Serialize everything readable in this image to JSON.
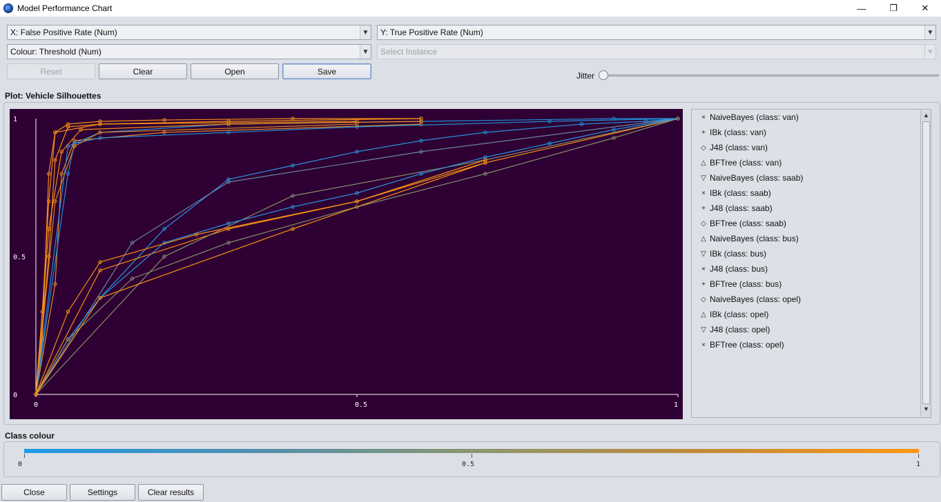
{
  "window": {
    "title": "Model Performance Chart",
    "minimize": "—",
    "maximize": "❐",
    "close": "✕"
  },
  "controls": {
    "x_axis": "X: False Positive Rate (Num)",
    "y_axis": "Y: True Positive Rate (Num)",
    "colour": "Colour: Threshold (Num)",
    "instance": "Select Instance",
    "reset": "Reset",
    "clear": "Clear",
    "open": "Open",
    "save": "Save",
    "jitter": "Jitter",
    "jitter_value": 0
  },
  "plot": {
    "label": "Plot: Vehicle Silhouettes",
    "background": "#2e0033",
    "x_ticks": [
      "0",
      "0.5",
      "1"
    ],
    "y_ticks": [
      "1",
      "0.5",
      "0"
    ]
  },
  "legend": {
    "items": [
      {
        "symbol": "×",
        "label": "NaiveBayes (class: van)"
      },
      {
        "symbol": "+",
        "label": "IBk (class: van)"
      },
      {
        "symbol": "◇",
        "label": "J48 (class: van)"
      },
      {
        "symbol": "△",
        "label": "BFTree (class: van)"
      },
      {
        "symbol": "▽",
        "label": "NaiveBayes (class: saab)"
      },
      {
        "symbol": "×",
        "label": "IBk (class: saab)"
      },
      {
        "symbol": "+",
        "label": "J48 (class: saab)"
      },
      {
        "symbol": "◇",
        "label": "BFTree (class: saab)"
      },
      {
        "symbol": "△",
        "label": "NaiveBayes (class: bus)"
      },
      {
        "symbol": "▽",
        "label": "IBk (class: bus)"
      },
      {
        "symbol": "×",
        "label": "J48 (class: bus)"
      },
      {
        "symbol": "+",
        "label": "BFTree (class: bus)"
      },
      {
        "symbol": "◇",
        "label": "NaiveBayes (class: opel)"
      },
      {
        "symbol": "△",
        "label": "IBk (class: opel)"
      },
      {
        "symbol": "▽",
        "label": "J48 (class: opel)"
      },
      {
        "symbol": "×",
        "label": "BFTree (class: opel)"
      }
    ]
  },
  "class_colour": {
    "label": "Class colour",
    "ticks": [
      "0",
      "0.5",
      "1"
    ],
    "low_color": "#1e9ae6",
    "high_color": "#ff9614"
  },
  "bottom": {
    "close": "Close",
    "settings": "Settings",
    "clear_results": "Clear results"
  },
  "chart_data": {
    "type": "line",
    "xlim": [
      0,
      1
    ],
    "ylim": [
      0,
      1
    ],
    "x_ticks": [
      "0",
      "0.5",
      "1"
    ],
    "y_ticks": [
      "0",
      "0.5",
      "1"
    ],
    "series": [
      {
        "name": "NaiveBayes (class: van)",
        "color": "#ff9614",
        "x": [
          0,
          0.01,
          0.02,
          0.03,
          0.05,
          0.1,
          0.2,
          0.4,
          0.6
        ],
        "y": [
          0,
          0.3,
          0.7,
          0.95,
          0.98,
          0.99,
          0.995,
          1.0,
          1.0
        ]
      },
      {
        "name": "IBk (class: van)",
        "color": "#ff9614",
        "x": [
          0,
          0.02,
          0.03,
          0.05,
          0.1,
          0.3,
          0.6
        ],
        "y": [
          0,
          0.5,
          0.85,
          0.97,
          0.98,
          0.99,
          1.0
        ]
      },
      {
        "name": "J48 (class: van)",
        "color": "#e8922a",
        "x": [
          0,
          0.03,
          0.04,
          0.06,
          0.2,
          0.6
        ],
        "y": [
          0,
          0.4,
          0.8,
          0.92,
          0.95,
          0.98
        ]
      },
      {
        "name": "BFTree (class: van)",
        "color": "#2196e0",
        "x": [
          0,
          0.05,
          0.06,
          0.1,
          0.3,
          0.5,
          0.8,
          1.0
        ],
        "y": [
          0,
          0.8,
          0.91,
          0.93,
          0.95,
          0.97,
          0.99,
          1.0
        ]
      },
      {
        "name": "NaiveBayes (class: saab)",
        "color": "#2a9ae8",
        "x": [
          0,
          0.1,
          0.2,
          0.3,
          0.4,
          0.5,
          0.6,
          0.7,
          0.85,
          0.95,
          1.0
        ],
        "y": [
          0,
          0.35,
          0.6,
          0.78,
          0.83,
          0.88,
          0.92,
          0.95,
          0.98,
          0.99,
          1.0
        ]
      },
      {
        "name": "IBk (class: saab)",
        "color": "#6b8fa8",
        "x": [
          0,
          0.15,
          0.3,
          0.6,
          1.0
        ],
        "y": [
          0,
          0.55,
          0.77,
          0.88,
          1.0
        ]
      },
      {
        "name": "J48 (class: saab)",
        "color": "#ff9614",
        "x": [
          0,
          0.1,
          0.3,
          0.5,
          0.7,
          1.0
        ],
        "y": [
          0,
          0.45,
          0.6,
          0.7,
          0.84,
          1.0
        ]
      },
      {
        "name": "BFTree (class: saab)",
        "color": "#8a9670",
        "x": [
          0,
          0.2,
          0.4,
          0.7,
          1.0
        ],
        "y": [
          0,
          0.5,
          0.72,
          0.85,
          1.0
        ]
      },
      {
        "name": "NaiveBayes (class: bus)",
        "color": "#ff9614",
        "x": [
          0,
          0.01,
          0.02,
          0.03,
          0.1,
          0.5
        ],
        "y": [
          0,
          0.2,
          0.8,
          0.95,
          0.98,
          0.99
        ]
      },
      {
        "name": "IBk (class: bus)",
        "color": "#2196e0",
        "x": [
          0,
          0.05,
          0.1,
          0.3,
          0.6,
          0.9,
          1.0
        ],
        "y": [
          0,
          0.9,
          0.95,
          0.98,
          0.99,
          1.0,
          1.0
        ]
      },
      {
        "name": "J48 (class: bus)",
        "color": "#ff9614",
        "x": [
          0,
          0.02,
          0.04,
          0.07,
          0.3,
          0.6
        ],
        "y": [
          0,
          0.6,
          0.88,
          0.96,
          0.98,
          0.99
        ]
      },
      {
        "name": "BFTree (class: bus)",
        "color": "#e38a25",
        "x": [
          0,
          0.03,
          0.06,
          0.1,
          0.5
        ],
        "y": [
          0,
          0.7,
          0.9,
          0.95,
          0.98
        ]
      },
      {
        "name": "NaiveBayes (class: opel)",
        "color": "#2a9ae8",
        "x": [
          0,
          0.05,
          0.1,
          0.2,
          0.3,
          0.4,
          0.5,
          0.6,
          0.7,
          0.8,
          0.9,
          1.0
        ],
        "y": [
          0,
          0.2,
          0.35,
          0.55,
          0.62,
          0.68,
          0.73,
          0.8,
          0.86,
          0.91,
          0.96,
          1.0
        ]
      },
      {
        "name": "IBk (class: opel)",
        "color": "#8a9670",
        "x": [
          0,
          0.05,
          0.15,
          0.3,
          0.5,
          0.7,
          0.9,
          1.0
        ],
        "y": [
          0,
          0.2,
          0.42,
          0.55,
          0.68,
          0.8,
          0.93,
          1.0
        ]
      },
      {
        "name": "J48 (class: opel)",
        "color": "#ff9614",
        "x": [
          0,
          0.05,
          0.1,
          0.25,
          0.5,
          0.7
        ],
        "y": [
          0,
          0.3,
          0.48,
          0.58,
          0.7,
          0.85
        ]
      },
      {
        "name": "BFTree (class: opel)",
        "color": "#ff9614",
        "x": [
          0,
          0.1,
          0.4,
          0.7
        ],
        "y": [
          0,
          0.35,
          0.6,
          0.84
        ]
      }
    ]
  }
}
